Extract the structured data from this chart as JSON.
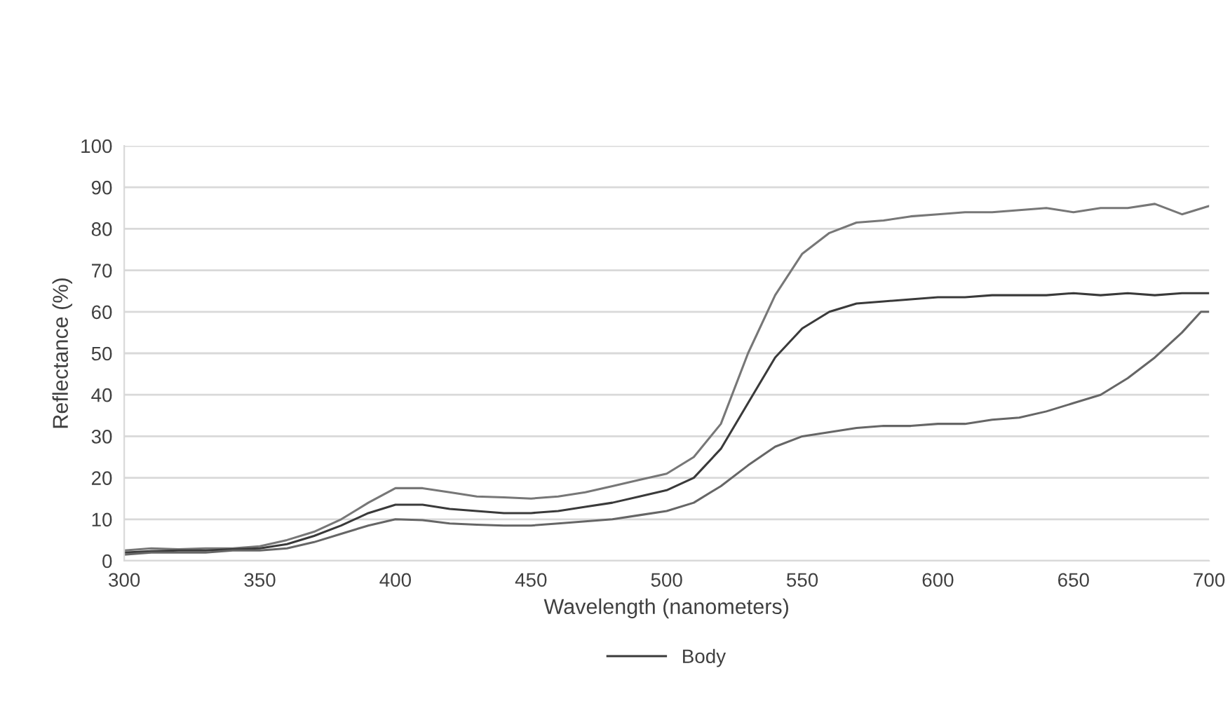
{
  "chart_data": {
    "type": "line",
    "xlabel": "Wavelength (nanometers)",
    "ylabel": "Reflectance (%)",
    "xlim": [
      300,
      700
    ],
    "xticks": [
      300,
      350,
      400,
      450,
      500,
      550,
      600,
      650,
      700
    ],
    "ylim": [
      0,
      100
    ],
    "yticks": [
      0,
      10,
      20,
      30,
      40,
      50,
      60,
      70,
      80,
      90,
      100
    ],
    "grid": "y",
    "legend": "bottom",
    "marker": "none",
    "line_style": "solid",
    "series": [
      {
        "color": "#777777",
        "x": [
          300,
          310,
          320,
          330,
          340,
          350,
          360,
          370,
          380,
          390,
          400,
          410,
          420,
          430,
          440,
          450,
          460,
          470,
          480,
          490,
          500,
          510,
          520,
          530,
          540,
          550,
          560,
          570,
          580,
          590,
          600,
          610,
          620,
          630,
          640,
          650,
          660,
          670,
          680,
          690,
          700
        ],
        "values": [
          2.5,
          3,
          2.8,
          3,
          3,
          3.5,
          5,
          7,
          10,
          14,
          17.5,
          17.5,
          16.5,
          15.5,
          15.3,
          15,
          15.5,
          16.5,
          18,
          19.5,
          21,
          25,
          33,
          50,
          64,
          74,
          79,
          81.5,
          82,
          83,
          83.5,
          84,
          84,
          84.5,
          85,
          84,
          85,
          85,
          86,
          83.5,
          85.5
        ]
      },
      {
        "name": "Body",
        "color": "#3a3a3a",
        "x": [
          300,
          310,
          320,
          330,
          340,
          350,
          360,
          370,
          380,
          390,
          400,
          410,
          420,
          430,
          440,
          450,
          460,
          470,
          480,
          490,
          500,
          510,
          520,
          530,
          540,
          550,
          560,
          570,
          580,
          590,
          600,
          610,
          620,
          630,
          640,
          650,
          660,
          670,
          680,
          690,
          700
        ],
        "values": [
          2,
          2.3,
          2.5,
          2.5,
          2.8,
          3,
          4,
          6,
          8.5,
          11.5,
          13.5,
          13.5,
          12.5,
          12,
          11.5,
          11.5,
          12,
          13,
          14,
          15.5,
          17,
          20,
          27,
          38,
          49,
          56,
          60,
          62,
          62.5,
          63,
          63.5,
          63.5,
          64,
          64,
          64,
          64.5,
          64,
          64.5,
          64,
          64.5,
          64.5
        ]
      },
      {
        "color": "#666666",
        "x": [
          300,
          310,
          320,
          330,
          340,
          350,
          360,
          370,
          380,
          390,
          400,
          410,
          420,
          430,
          440,
          450,
          460,
          470,
          480,
          490,
          500,
          510,
          520,
          530,
          540,
          550,
          560,
          570,
          580,
          590,
          600,
          610,
          620,
          630,
          640,
          650,
          660,
          670,
          680,
          690,
          697,
          700
        ],
        "values": [
          1.5,
          2,
          2,
          2,
          2.5,
          2.5,
          3,
          4.5,
          6.5,
          8.5,
          10,
          9.8,
          9,
          8.7,
          8.5,
          8.5,
          9,
          9.5,
          10,
          11,
          12,
          14,
          18,
          23,
          27.5,
          30,
          31,
          32,
          32.5,
          32.5,
          33,
          33,
          34,
          34.5,
          36,
          38,
          40,
          44,
          49,
          55,
          60,
          60
        ]
      }
    ]
  }
}
